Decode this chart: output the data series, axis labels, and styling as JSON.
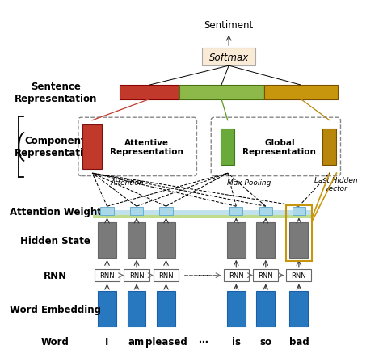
{
  "bg_color": "#ffffff",
  "words": [
    "I",
    "am",
    "pleased",
    "⋯",
    "is",
    "so",
    "bad"
  ],
  "embed_color": "#2878c0",
  "hidden_color": "#7a7a7a",
  "softmax_color": "#faebd7",
  "sent_colors": [
    "#c0392b",
    "#8db84a",
    "#c8960c"
  ],
  "attentive_red": "#c0392b",
  "global_green": "#6aaa3a",
  "global_gold": "#b8860b",
  "attn_band_blue": "#add8e6",
  "attn_band_green": "#c8e6a0",
  "attn_sq_color": "#a8d8ea",
  "rnn_ec": "#666666",
  "label_fs": 8.5,
  "small_fs": 7.5,
  "tiny_fs": 6.5
}
